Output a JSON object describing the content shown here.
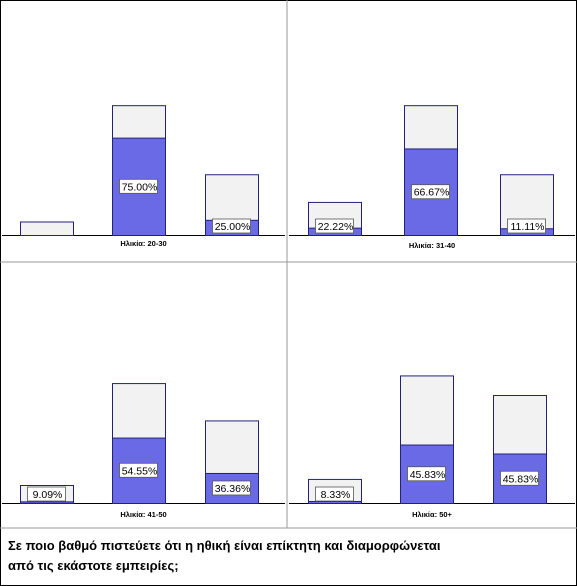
{
  "caption": {
    "line1": "Σε ποιο βαθμό πιστεύετε ότι η ηθική είναι επίκτητη και διαμορφώνεται",
    "line2": "από τις εκάστοτε εμπειρίες;"
  },
  "colors": {
    "fill_overall": "#6a6ae6",
    "fill_empty": "#f2f2f2",
    "stroke": "#22227a",
    "divider": "#9a9a9a"
  },
  "chart_data": [
    {
      "type": "bar",
      "panel_label": "Ηλικία: 20-30",
      "bars": [
        {
          "total": 6.0,
          "group": 0,
          "label": null
        },
        {
          "total": 57.7,
          "group": 75.0,
          "label": "75.00%"
        },
        {
          "total": 27.0,
          "group": 25.0,
          "label": "25.00%"
        }
      ]
    },
    {
      "type": "bar",
      "panel_label": "Ηλικία: 31-40",
      "bars": [
        {
          "total": 14.7,
          "group": 22.22,
          "label": "22.22%"
        },
        {
          "total": 57.7,
          "group": 66.67,
          "label": "66.67%"
        },
        {
          "total": 27.0,
          "group": 11.11,
          "label": "11.11%"
        }
      ]
    },
    {
      "type": "bar",
      "panel_label": "Ηλικία: 41-50",
      "bars": [
        {
          "total": 8.0,
          "group": 9.09,
          "label": "9.09%"
        },
        {
          "total": 53.3,
          "group": 54.55,
          "label": "54.55%"
        },
        {
          "total": 36.7,
          "group": 36.36,
          "label": "36.36%"
        }
      ]
    },
    {
      "type": "bar",
      "panel_label": "Ηλικία: 50+",
      "bars": [
        {
          "total": 10.7,
          "group": 8.33,
          "label": "8.33%"
        },
        {
          "total": 56.7,
          "group": 45.83,
          "label": "45.83%"
        },
        {
          "total": 48.0,
          "group": 45.83,
          "label": "45.83%"
        }
      ]
    }
  ]
}
